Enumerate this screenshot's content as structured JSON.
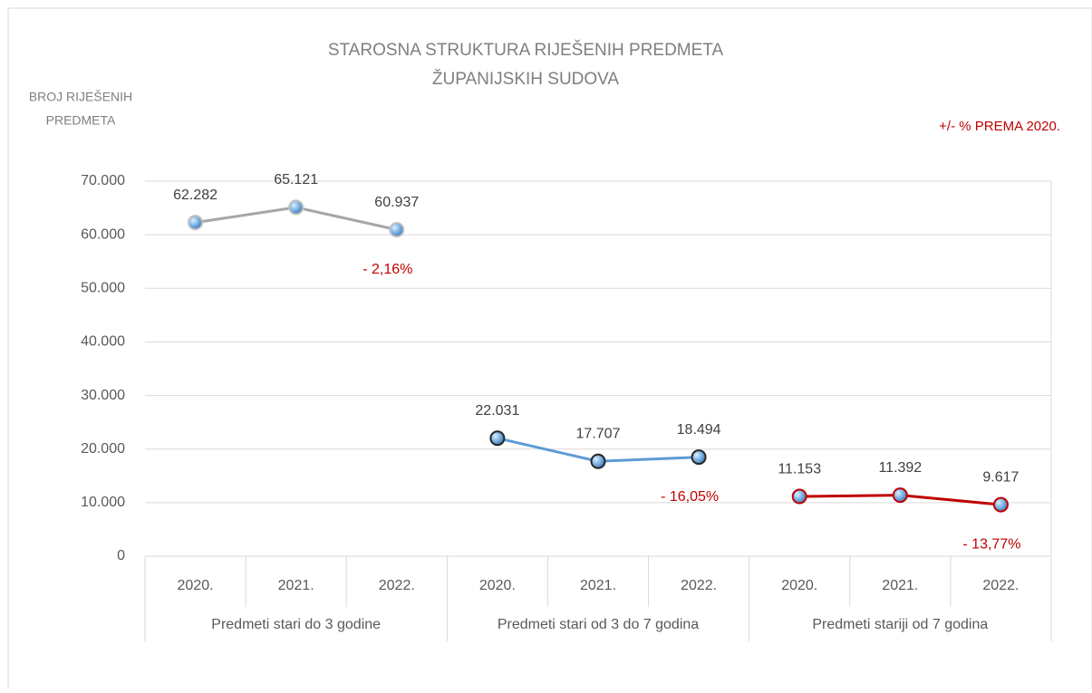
{
  "chart_data": {
    "type": "line",
    "title": [
      "STAROSNA STRUKTURA RIJEŠENIH PREDMETA",
      "ŽUPANIJSKIH SUDOVA"
    ],
    "y_axis_label": [
      "BROJ RIJEŠENIH",
      "PREDMETA"
    ],
    "annotation": "+/- % PREMA 2020.",
    "categories": [
      "2020.",
      "2021.",
      "2022.",
      "2020.",
      "2021.",
      "2022.",
      "2020.",
      "2021.",
      "2022."
    ],
    "groups": [
      "Predmeti stari do 3 godine",
      "Predmeti stari od 3 do 7 godina",
      "Predmeti stariji od 7 godina"
    ],
    "series": [
      {
        "color": "#a6a6a6",
        "marker_edge": "#bfbfbf",
        "values": [
          62282,
          65121,
          60937,
          null,
          null,
          null,
          null,
          null,
          null
        ],
        "value_labels": [
          "62.282",
          "65.121",
          "60.937",
          null,
          null,
          null,
          null,
          null,
          null
        ],
        "change_label": "- 2,16%"
      },
      {
        "color": "#5b9bd5",
        "marker_edge": "#262626",
        "values": [
          null,
          null,
          null,
          22031,
          17707,
          18494,
          null,
          null,
          null
        ],
        "value_labels": [
          null,
          null,
          null,
          "22.031",
          "17.707",
          "18.494",
          null,
          null,
          null
        ],
        "change_label": "- 16,05%"
      },
      {
        "color": "#c00000",
        "marker_edge": "#c00000",
        "values": [
          null,
          null,
          null,
          null,
          null,
          null,
          11153,
          11392,
          9617
        ],
        "value_labels": [
          null,
          null,
          null,
          null,
          null,
          null,
          "11.153",
          "11.392",
          "9.617"
        ],
        "change_label": "- 13,77%"
      }
    ],
    "ylim": [
      0,
      70000
    ],
    "yticks": [
      0,
      {
        "value": 10000,
        "label": "10.000"
      },
      {
        "value": 20000,
        "label": "20.000"
      },
      {
        "value": 30000,
        "label": "30.000"
      },
      {
        "value": 40000,
        "label": "40.000"
      },
      {
        "value": 50000,
        "label": "50.000"
      },
      {
        "value": 60000,
        "label": "60.000"
      },
      {
        "value": 70000,
        "label": "70.000"
      }
    ],
    "grid": true,
    "annotation_color": "#c00000"
  }
}
